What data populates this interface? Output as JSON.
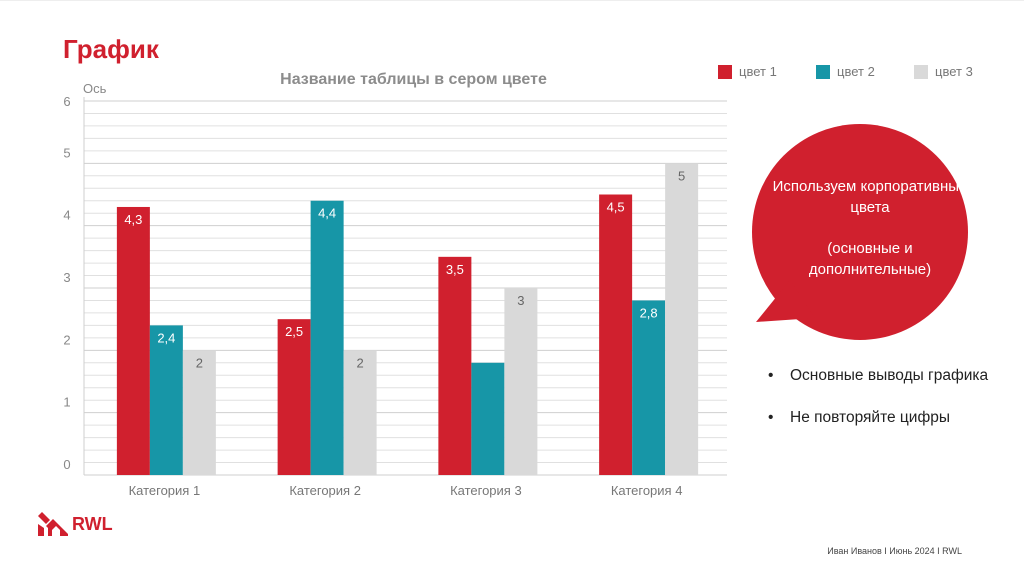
{
  "slide": {
    "title": "График",
    "footer": "Иван Иванов I Июнь 2024 I RWL",
    "logo_text": "RWL"
  },
  "legend": [
    {
      "label": "цвет 1",
      "color": "#d0202e"
    },
    {
      "label": "цвет 2",
      "color": "#1796a7"
    },
    {
      "label": "цвет 3",
      "color": "#d9d9d9"
    }
  ],
  "callout": {
    "line1": "Используем корпоративные цвета",
    "line2": "(основные и дополнительные)",
    "color": "#d0202e"
  },
  "bullets": [
    {
      "symbol": "•",
      "text": "Основные выводы графика"
    },
    {
      "symbol": "•",
      "text": "Не повторяйте цифры"
    }
  ],
  "chart_data": {
    "type": "bar",
    "title": "Название таблицы в сером цвете",
    "ylabel": "Ось",
    "xlabel": "",
    "ylim": [
      0,
      6
    ],
    "yticks": [
      "0",
      "1",
      "2",
      "3",
      "4",
      "5",
      "6"
    ],
    "categories": [
      "Категория 1",
      "Категория 2",
      "Категория 3",
      "Категория 4"
    ],
    "series": [
      {
        "name": "цвет 1",
        "color": "#d0202e",
        "values": [
          4.3,
          2.5,
          3.5,
          4.5
        ],
        "labels": [
          "4,3",
          "2,5",
          "3,5",
          "4,5"
        ],
        "label_color": "#ffffff"
      },
      {
        "name": "цвет 2",
        "color": "#1796a7",
        "values": [
          2.4,
          4.4,
          1.8,
          2.8
        ],
        "labels": [
          "2,4",
          "4,4",
          "",
          "2,8"
        ],
        "label_color": "#ffffff"
      },
      {
        "name": "цвет 3",
        "color": "#d9d9d9",
        "values": [
          2,
          2,
          3,
          5
        ],
        "labels": [
          "2",
          "2",
          "3",
          "5"
        ],
        "label_color": "#666666"
      }
    ],
    "grid": true
  }
}
